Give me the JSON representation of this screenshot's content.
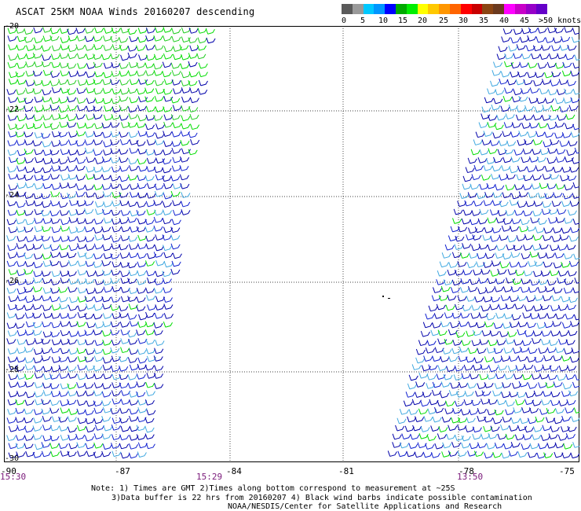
{
  "title": "ASCAT 25KM NOAA Winds 20160207 descending",
  "legend": {
    "labels": [
      "0",
      "5",
      "10",
      "15",
      "20",
      "25",
      "30",
      "35",
      "40",
      "45",
      ">50 knots"
    ],
    "colors": [
      "#5a5a5a",
      "#9a9a9a",
      "#00c8ff",
      "#0096ff",
      "#0000ff",
      "#00aa00",
      "#00ee00",
      "#ffff00",
      "#ffc800",
      "#ff9600",
      "#ff6400",
      "#ff0000",
      "#c80000",
      "#8b4513",
      "#6b3a1f",
      "#ff00ff",
      "#c800c8",
      "#9600c8",
      "#6400c8"
    ]
  },
  "map": {
    "lat_labels": [
      "-20",
      "-22",
      "-24",
      "-26",
      "-28",
      "-30"
    ],
    "lon_labels": [
      "-90",
      "-87",
      "-84",
      "-81",
      "-78",
      "-75"
    ],
    "pass_times": [
      "15:30",
      "15:29",
      "13:50"
    ]
  },
  "notes": {
    "line1": "Note: 1) Times are GMT 2)Times along bottom correspond to measurement at ~25S",
    "line2": "3)Data buffer is 22 hrs from 20160207 4) Black wind barbs indicate possible contamination",
    "line3": "NOAA/NESDIS/Center for Satellite Applications and Research"
  }
}
